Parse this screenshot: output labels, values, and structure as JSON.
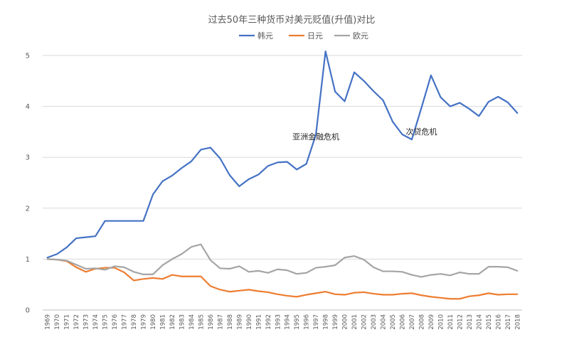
{
  "chart_data": {
    "type": "line",
    "title": "过去50年三种货币对美元贬值(升值)对比",
    "xlabel": "",
    "ylabel": "",
    "ylim": [
      0,
      5
    ],
    "yticks": [
      0,
      1,
      2,
      3,
      4,
      5
    ],
    "grid": "horizontal",
    "legend": "top-center",
    "x": [
      "1969",
      "1970",
      "1971",
      "1972",
      "1973",
      "1974",
      "1975",
      "1976",
      "1977",
      "1978",
      "1979",
      "1980",
      "1981",
      "1982",
      "1983",
      "1984",
      "1985",
      "1986",
      "1987",
      "1988",
      "1989",
      "1990",
      "1991",
      "1992",
      "1993",
      "1994",
      "1995",
      "1996",
      "1997",
      "1998",
      "1999",
      "2000",
      "2001",
      "2002",
      "2003",
      "2004",
      "2005",
      "2006",
      "2007",
      "2008",
      "2009",
      "2010",
      "2011",
      "2012",
      "2013",
      "2014",
      "2015",
      "2016",
      "2017",
      "2018"
    ],
    "series": [
      {
        "name": "韩元",
        "color": "#4472c4",
        "values": [
          1.03,
          1.1,
          1.23,
          1.41,
          1.43,
          1.45,
          1.75,
          1.75,
          1.75,
          1.75,
          1.75,
          2.27,
          2.53,
          2.64,
          2.79,
          2.92,
          3.15,
          3.19,
          2.98,
          2.65,
          2.43,
          2.57,
          2.66,
          2.83,
          2.9,
          2.91,
          2.76,
          2.87,
          3.45,
          5.08,
          4.29,
          4.1,
          4.67,
          4.5,
          4.3,
          4.12,
          3.7,
          3.45,
          3.35,
          3.97,
          4.61,
          4.18,
          4.0,
          4.07,
          3.95,
          3.81,
          4.09,
          4.19,
          4.08,
          3.87
        ]
      },
      {
        "name": "日元",
        "color": "#ed7d31",
        "values": [
          1.0,
          0.99,
          0.96,
          0.84,
          0.75,
          0.81,
          0.83,
          0.83,
          0.74,
          0.58,
          0.61,
          0.63,
          0.61,
          0.69,
          0.66,
          0.66,
          0.66,
          0.47,
          0.4,
          0.36,
          0.38,
          0.4,
          0.37,
          0.35,
          0.31,
          0.28,
          0.26,
          0.3,
          0.33,
          0.36,
          0.31,
          0.3,
          0.34,
          0.35,
          0.32,
          0.3,
          0.3,
          0.32,
          0.33,
          0.29,
          0.26,
          0.24,
          0.22,
          0.22,
          0.27,
          0.29,
          0.33,
          0.3,
          0.31,
          0.31
        ]
      },
      {
        "name": "欧元",
        "color": "#a5a5a5",
        "values": [
          1.0,
          0.99,
          0.97,
          0.89,
          0.81,
          0.82,
          0.79,
          0.86,
          0.84,
          0.75,
          0.7,
          0.7,
          0.88,
          1.0,
          1.1,
          1.24,
          1.29,
          0.98,
          0.82,
          0.81,
          0.86,
          0.75,
          0.77,
          0.73,
          0.8,
          0.78,
          0.71,
          0.73,
          0.83,
          0.85,
          0.88,
          1.03,
          1.06,
          0.99,
          0.84,
          0.76,
          0.76,
          0.75,
          0.69,
          0.65,
          0.69,
          0.71,
          0.68,
          0.74,
          0.71,
          0.71,
          0.85,
          0.85,
          0.84,
          0.77
        ]
      }
    ],
    "annotations": [
      {
        "text": "亚洲金融危机",
        "x": "1997",
        "y": 3.35
      },
      {
        "text": "次贷危机",
        "x": "2008",
        "y": 3.45
      }
    ]
  }
}
